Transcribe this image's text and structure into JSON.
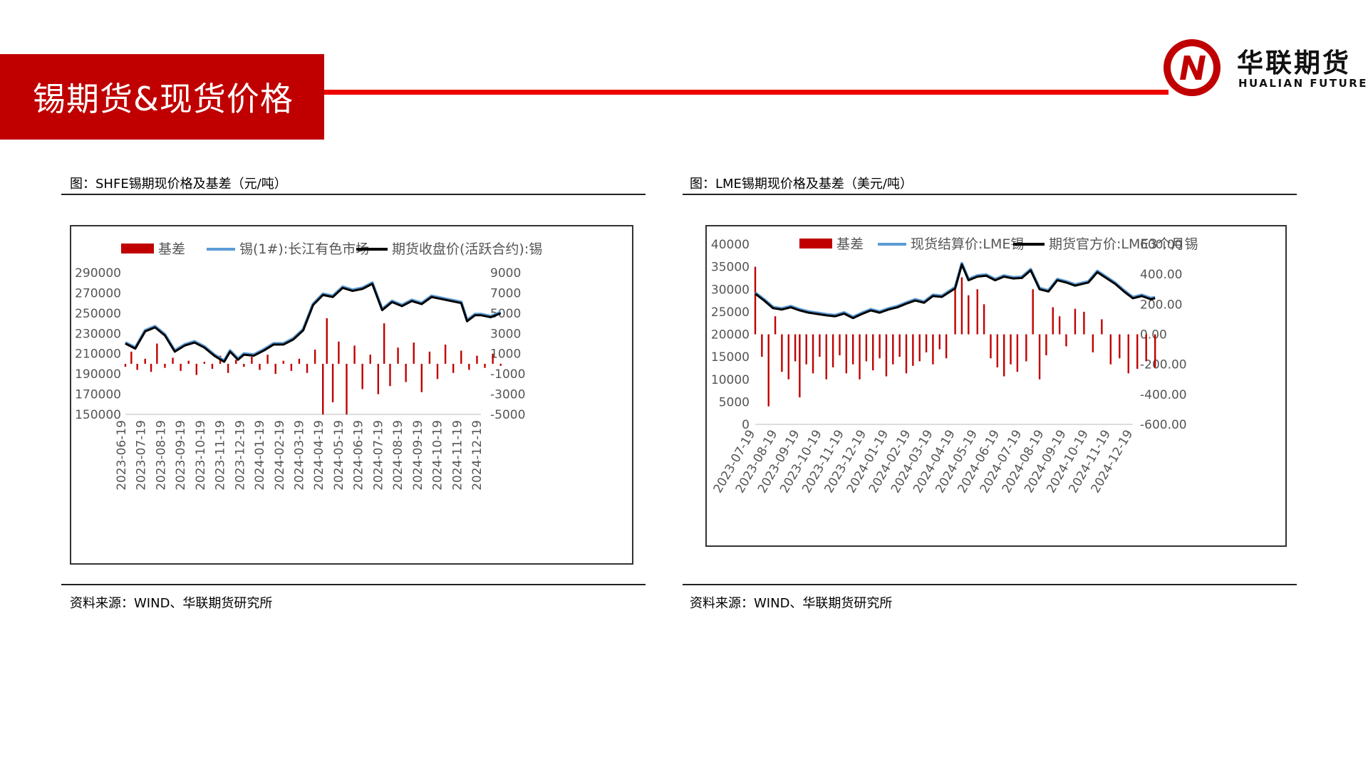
{
  "header": {
    "title": "锡期货&现货价格",
    "logo_cn": "华联期货",
    "logo_en": "HUALIAN FUTURES",
    "brand_color": "#c00000"
  },
  "left": {
    "caption": "图：SHFE锡期现价格及基差（元/吨）",
    "source": "资料来源：WIND、华联期货研究所"
  },
  "right": {
    "caption": "图：LME锡期现价格及基差（美元/吨）",
    "source": "资料来源：WIND、华联期货研究所"
  },
  "chart_data": [
    {
      "type": "line",
      "legend": [
        "基差",
        "锡(1#):长江有色市场",
        "期货收盘价(活跃合约):锡"
      ],
      "series_colors": [
        "#c00000",
        "#5b9bd5",
        "#000000"
      ],
      "left_axis": {
        "ylim": [
          150000,
          290000
        ],
        "ticks": [
          "290000",
          "270000",
          "250000",
          "230000",
          "210000",
          "190000",
          "170000",
          "150000"
        ]
      },
      "right_axis": {
        "ylim": [
          -5000,
          9000
        ],
        "ticks": [
          "9000",
          "7000",
          "5000",
          "3000",
          "1000",
          "-1000",
          "-3000",
          "-5000"
        ]
      },
      "x_ticks": [
        "2023-06-19",
        "2023-07-19",
        "2023-08-19",
        "2023-09-19",
        "2023-10-19",
        "2023-11-19",
        "2023-12-19",
        "2024-01-19",
        "2024-02-19",
        "2024-03-19",
        "2024-04-19",
        "2024-05-19",
        "2024-06-19",
        "2024-07-19",
        "2024-08-19",
        "2024-09-19",
        "2024-10-19",
        "2024-11-19",
        "2024-12-19"
      ],
      "price": [
        [
          0,
          220000
        ],
        [
          0.5,
          215000
        ],
        [
          1,
          232000
        ],
        [
          1.5,
          236000
        ],
        [
          2,
          228000
        ],
        [
          2.5,
          212000
        ],
        [
          3,
          218000
        ],
        [
          3.5,
          221000
        ],
        [
          4,
          216000
        ],
        [
          4.5,
          208000
        ],
        [
          5,
          202000
        ],
        [
          5.3,
          212000
        ],
        [
          5.7,
          204000
        ],
        [
          6,
          209000
        ],
        [
          6.5,
          208000
        ],
        [
          7,
          213000
        ],
        [
          7.5,
          219000
        ],
        [
          8,
          219000
        ],
        [
          8.5,
          224000
        ],
        [
          9,
          233000
        ],
        [
          9.5,
          258000
        ],
        [
          10,
          268000
        ],
        [
          10.5,
          266000
        ],
        [
          11,
          275000
        ],
        [
          11.5,
          272000
        ],
        [
          12,
          274000
        ],
        [
          12.5,
          279000
        ],
        [
          13,
          253000
        ],
        [
          13.5,
          261000
        ],
        [
          14,
          257000
        ],
        [
          14.5,
          262000
        ],
        [
          15,
          259000
        ],
        [
          15.5,
          266000
        ],
        [
          16,
          264000
        ],
        [
          16.5,
          262000
        ],
        [
          17,
          260000
        ],
        [
          17.3,
          242000
        ],
        [
          17.7,
          248000
        ],
        [
          18,
          248000
        ],
        [
          18.5,
          246000
        ],
        [
          19,
          250000
        ]
      ],
      "basis": [
        [
          0,
          -300
        ],
        [
          0.3,
          1200
        ],
        [
          0.6,
          -600
        ],
        [
          1,
          500
        ],
        [
          1.3,
          -800
        ],
        [
          1.6,
          2000
        ],
        [
          2,
          -400
        ],
        [
          2.4,
          600
        ],
        [
          2.8,
          -700
        ],
        [
          3.2,
          300
        ],
        [
          3.6,
          -1100
        ],
        [
          4,
          200
        ],
        [
          4.4,
          -500
        ],
        [
          4.8,
          800
        ],
        [
          5.2,
          -900
        ],
        [
          5.6,
          400
        ],
        [
          6,
          -300
        ],
        [
          6.4,
          700
        ],
        [
          6.8,
          -600
        ],
        [
          7.2,
          900
        ],
        [
          7.6,
          -1000
        ],
        [
          8,
          300
        ],
        [
          8.4,
          -700
        ],
        [
          8.8,
          500
        ],
        [
          9.2,
          -900
        ],
        [
          9.6,
          1400
        ],
        [
          10,
          -5000
        ],
        [
          10.2,
          4500
        ],
        [
          10.5,
          -3800
        ],
        [
          10.8,
          2200
        ],
        [
          11.2,
          -5000
        ],
        [
          11.6,
          1800
        ],
        [
          12,
          -2500
        ],
        [
          12.4,
          900
        ],
        [
          12.8,
          -3000
        ],
        [
          13.1,
          4000
        ],
        [
          13.4,
          -2200
        ],
        [
          13.8,
          1600
        ],
        [
          14.2,
          -1800
        ],
        [
          14.6,
          2100
        ],
        [
          15,
          -2800
        ],
        [
          15.4,
          1200
        ],
        [
          15.8,
          -1500
        ],
        [
          16.2,
          1900
        ],
        [
          16.6,
          -900
        ],
        [
          17,
          1300
        ],
        [
          17.4,
          -600
        ],
        [
          17.8,
          800
        ],
        [
          18.2,
          -400
        ],
        [
          18.6,
          1000
        ],
        [
          19,
          -200
        ]
      ]
    },
    {
      "type": "line",
      "legend": [
        "基差",
        "现货结算价:LME锡",
        "期货官方价:LME3个月锡"
      ],
      "series_colors": [
        "#c00000",
        "#5b9bd5",
        "#000000"
      ],
      "left_axis": {
        "ylim": [
          0,
          40000
        ],
        "ticks": [
          "40000",
          "35000",
          "30000",
          "25000",
          "20000",
          "15000",
          "10000",
          "5000",
          "0"
        ]
      },
      "right_axis": {
        "ylim": [
          -600,
          600
        ],
        "ticks": [
          "600.00",
          "400.00",
          "200.00",
          "0.00",
          "-200.00",
          "-400.00",
          "-600.00"
        ]
      },
      "x_ticks": [
        "2023-07-19",
        "2023-08-19",
        "2023-09-19",
        "2023-10-19",
        "2023-11-19",
        "2023-12-19",
        "2024-01-19",
        "2024-02-19",
        "2024-03-19",
        "2024-04-19",
        "2024-05-19",
        "2024-06-19",
        "2024-07-19",
        "2024-08-19",
        "2024-09-19",
        "2024-10-19",
        "2024-11-19",
        "2024-12-19"
      ],
      "price": [
        [
          0,
          29000
        ],
        [
          0.4,
          27500
        ],
        [
          0.8,
          25800
        ],
        [
          1.2,
          25500
        ],
        [
          1.6,
          26000
        ],
        [
          2,
          25300
        ],
        [
          2.4,
          24800
        ],
        [
          2.8,
          24500
        ],
        [
          3.2,
          24200
        ],
        [
          3.6,
          24000
        ],
        [
          4,
          24600
        ],
        [
          4.4,
          23600
        ],
        [
          4.8,
          24500
        ],
        [
          5.2,
          25300
        ],
        [
          5.6,
          24800
        ],
        [
          6,
          25500
        ],
        [
          6.4,
          26000
        ],
        [
          6.8,
          26800
        ],
        [
          7.2,
          27500
        ],
        [
          7.6,
          27000
        ],
        [
          8,
          28500
        ],
        [
          8.4,
          28300
        ],
        [
          9,
          30200
        ],
        [
          9.3,
          35500
        ],
        [
          9.6,
          32000
        ],
        [
          10,
          32800
        ],
        [
          10.4,
          33000
        ],
        [
          10.8,
          32000
        ],
        [
          11.2,
          32800
        ],
        [
          11.6,
          32400
        ],
        [
          12,
          32500
        ],
        [
          12.4,
          34200
        ],
        [
          12.8,
          30000
        ],
        [
          13.2,
          29500
        ],
        [
          13.6,
          32000
        ],
        [
          14,
          31500
        ],
        [
          14.4,
          30800
        ],
        [
          15,
          31500
        ],
        [
          15.4,
          33800
        ],
        [
          15.8,
          32500
        ],
        [
          16.2,
          31200
        ],
        [
          16.6,
          29500
        ],
        [
          17,
          28000
        ],
        [
          17.4,
          28500
        ],
        [
          17.8,
          27800
        ],
        [
          18,
          28000
        ]
      ],
      "basis": [
        [
          0,
          450
        ],
        [
          0.3,
          -150
        ],
        [
          0.6,
          -480
        ],
        [
          0.9,
          120
        ],
        [
          1.2,
          -250
        ],
        [
          1.5,
          -300
        ],
        [
          1.8,
          -180
        ],
        [
          2,
          -420
        ],
        [
          2.3,
          -200
        ],
        [
          2.6,
          -260
        ],
        [
          2.9,
          -150
        ],
        [
          3.2,
          -300
        ],
        [
          3.5,
          -220
        ],
        [
          3.8,
          -140
        ],
        [
          4.1,
          -260
        ],
        [
          4.4,
          -200
        ],
        [
          4.7,
          -300
        ],
        [
          5,
          -180
        ],
        [
          5.3,
          -240
        ],
        [
          5.6,
          -160
        ],
        [
          5.9,
          -280
        ],
        [
          6.2,
          -200
        ],
        [
          6.5,
          -150
        ],
        [
          6.8,
          -260
        ],
        [
          7.1,
          -210
        ],
        [
          7.4,
          -180
        ],
        [
          7.7,
          -120
        ],
        [
          8,
          -200
        ],
        [
          8.3,
          -100
        ],
        [
          8.6,
          -160
        ],
        [
          9,
          320
        ],
        [
          9.3,
          380
        ],
        [
          9.6,
          260
        ],
        [
          10,
          300
        ],
        [
          10.3,
          200
        ],
        [
          10.6,
          -160
        ],
        [
          10.9,
          -220
        ],
        [
          11.2,
          -280
        ],
        [
          11.5,
          -200
        ],
        [
          11.8,
          -250
        ],
        [
          12.2,
          -180
        ],
        [
          12.5,
          300
        ],
        [
          12.8,
          -300
        ],
        [
          13.1,
          -140
        ],
        [
          13.4,
          180
        ],
        [
          13.7,
          120
        ],
        [
          14,
          -80
        ],
        [
          14.4,
          170
        ],
        [
          14.8,
          150
        ],
        [
          15.2,
          -120
        ],
        [
          15.6,
          100
        ],
        [
          16,
          -200
        ],
        [
          16.4,
          -160
        ],
        [
          16.8,
          -260
        ],
        [
          17.2,
          -230
        ],
        [
          17.6,
          -180
        ],
        [
          18,
          -220
        ]
      ]
    }
  ]
}
